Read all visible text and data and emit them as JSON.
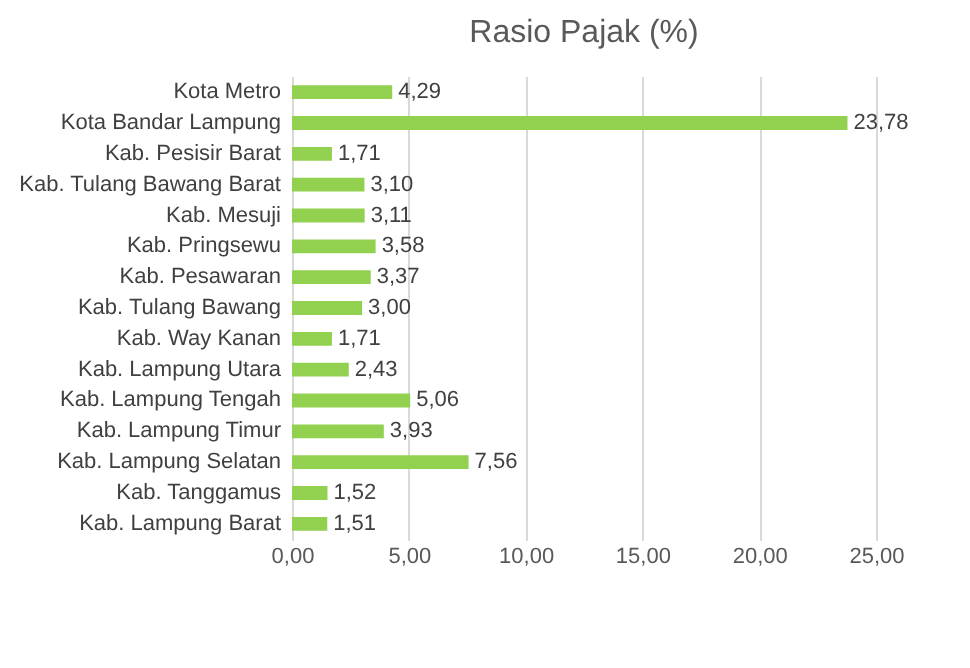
{
  "chart_data": {
    "type": "bar",
    "orientation": "horizontal",
    "title": "Rasio Pajak (%)",
    "categories": [
      "Kota Metro",
      "Kota Bandar Lampung",
      "Kab. Pesisir Barat",
      "Kab. Tulang Bawang Barat",
      "Kab. Mesuji",
      "Kab. Pringsewu",
      "Kab. Pesawaran",
      "Kab. Tulang Bawang",
      "Kab. Way Kanan",
      "Kab. Lampung Utara",
      "Kab. Lampung Tengah",
      "Kab. Lampung Timur",
      "Kab. Lampung Selatan",
      "Kab. Tanggamus",
      "Kab. Lampung Barat"
    ],
    "values": [
      4.29,
      23.78,
      1.71,
      3.1,
      3.11,
      3.58,
      3.37,
      3.0,
      1.71,
      2.43,
      5.06,
      3.93,
      7.56,
      1.52,
      1.51
    ],
    "value_labels": [
      "4,29",
      "23,78",
      "1,71",
      "3,10",
      "3,11",
      "3,58",
      "3,37",
      "3,00",
      "1,71",
      "2,43",
      "5,06",
      "3,93",
      "7,56",
      "1,52",
      "1,51"
    ],
    "color": "#92d050",
    "xlim": [
      0,
      25
    ],
    "xticks": [
      {
        "value": 0,
        "label": "0,00"
      },
      {
        "value": 5,
        "label": "5,00"
      },
      {
        "value": 10,
        "label": "10,00"
      },
      {
        "value": 15,
        "label": "15,00"
      },
      {
        "value": 20,
        "label": "20,00"
      },
      {
        "value": 25,
        "label": "25,00"
      }
    ],
    "grid": "x"
  }
}
